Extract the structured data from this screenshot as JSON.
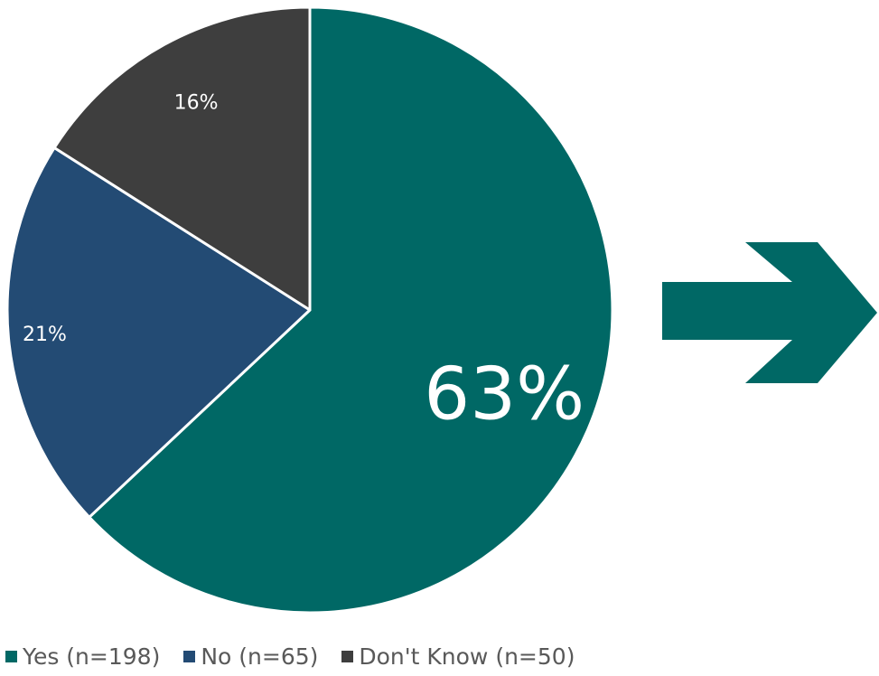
{
  "chart_data": {
    "type": "pie",
    "slices": [
      {
        "label": "63%",
        "value": 63,
        "color": "#006865"
      },
      {
        "label": "21%",
        "value": 21,
        "color": "#234b74"
      },
      {
        "label": "16%",
        "value": 16,
        "color": "#3e3e3e"
      }
    ],
    "legend": {
      "placement": "bottom-left",
      "entries": [
        {
          "label": "Yes (n=198)",
          "color": "#006865"
        },
        {
          "label": "No (n=65)",
          "color": "#234b74"
        },
        {
          "label": "Don't Know (n=50)",
          "color": "#3e3e3e"
        }
      ]
    },
    "slice_border_color": "#ffffff"
  },
  "arrow": {
    "icon": "right-arrow-icon",
    "color": "#006865"
  }
}
